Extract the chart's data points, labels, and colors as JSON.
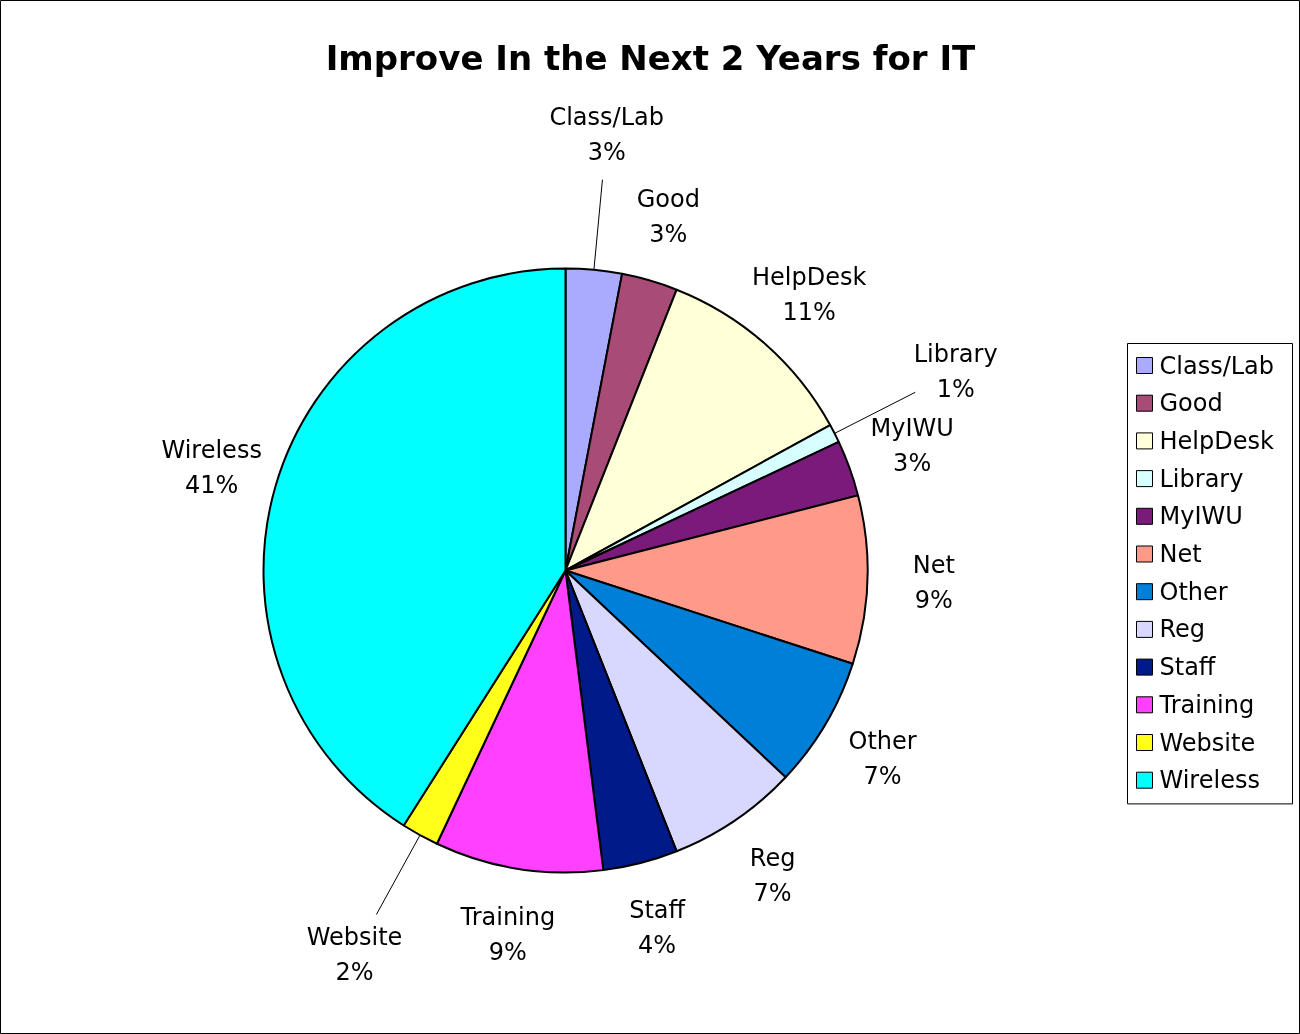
{
  "chart_data": {
    "type": "pie",
    "title": "Improve In the Next 2 Years for IT",
    "categories": [
      "Class/Lab",
      "Good",
      "HelpDesk",
      "Library",
      "MyIWU",
      "Net",
      "Other",
      "Reg",
      "Staff",
      "Training",
      "Website",
      "Wireless"
    ],
    "values": [
      3,
      3,
      11,
      1,
      3,
      9,
      7,
      7,
      4,
      9,
      2,
      41
    ],
    "colors": [
      "#aaaaff",
      "#a94b77",
      "#ffffd8",
      "#d8ffff",
      "#7a1a7a",
      "#ff9a8a",
      "#007fd8",
      "#d8d8ff",
      "#001a8a",
      "#ff40ff",
      "#ffff1a",
      "#00ffff"
    ],
    "value_labels": [
      "3%",
      "3%",
      "11%",
      "1%",
      "3%",
      "9%",
      "7%",
      "7%",
      "4%",
      "9%",
      "2%",
      "41%"
    ],
    "legend": "right"
  }
}
